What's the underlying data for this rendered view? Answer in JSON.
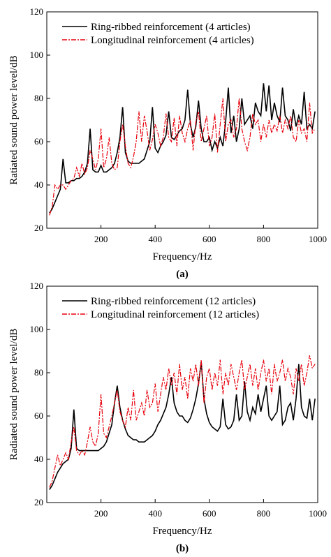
{
  "chart_data": [
    {
      "type": "line",
      "caption": "(a)",
      "x_label": "Frequency/Hz",
      "y_label": "Ratiated sound power level/dB",
      "xlim": [
        0,
        1000
      ],
      "ylim": [
        20,
        120
      ],
      "xticks": [
        200,
        400,
        600,
        800,
        1000
      ],
      "yticks": [
        20,
        40,
        60,
        80,
        100,
        120
      ],
      "x": [
        10,
        20,
        30,
        40,
        50,
        60,
        70,
        80,
        90,
        100,
        110,
        120,
        130,
        140,
        150,
        160,
        170,
        180,
        190,
        200,
        210,
        220,
        230,
        240,
        250,
        260,
        270,
        280,
        290,
        300,
        310,
        320,
        330,
        340,
        350,
        360,
        370,
        380,
        390,
        400,
        410,
        420,
        430,
        440,
        450,
        460,
        470,
        480,
        490,
        500,
        510,
        520,
        530,
        540,
        550,
        560,
        570,
        580,
        590,
        600,
        610,
        620,
        630,
        640,
        650,
        660,
        670,
        680,
        690,
        700,
        710,
        720,
        730,
        740,
        750,
        760,
        770,
        780,
        790,
        800,
        810,
        820,
        830,
        840,
        850,
        860,
        870,
        880,
        890,
        900,
        910,
        920,
        930,
        940,
        950,
        960,
        970,
        980,
        990
      ],
      "series": [
        {
          "name": "Ring-ribbed reinforcement (4 articles)",
          "color": "#000000",
          "style": "solid",
          "values": [
            27,
            29,
            32,
            35,
            38,
            52,
            41,
            41,
            42,
            42,
            43,
            43,
            44,
            46,
            50,
            66,
            47,
            46,
            46,
            49,
            46,
            46,
            47,
            48,
            50,
            55,
            62,
            76,
            55,
            51,
            50,
            50,
            50,
            50,
            51,
            52,
            56,
            60,
            76,
            57,
            55,
            58,
            60,
            63,
            74,
            62,
            61,
            63,
            65,
            66,
            70,
            84,
            68,
            62,
            67,
            79,
            66,
            60,
            60,
            62,
            56,
            60,
            57,
            62,
            58,
            69,
            85,
            64,
            72,
            60,
            66,
            80,
            68,
            70,
            72,
            66,
            78,
            74,
            72,
            87,
            74,
            86,
            70,
            78,
            72,
            69,
            85,
            72,
            70,
            65,
            75,
            67,
            72,
            68,
            83,
            66,
            68,
            66,
            74
          ]
        },
        {
          "name": "Longitudinal reinforcement (4 articles)",
          "color": "#e8000b",
          "style": "dashdot",
          "values": [
            26,
            30,
            40,
            38,
            40,
            40,
            38,
            40,
            42,
            43,
            48,
            44,
            50,
            45,
            48,
            56,
            52,
            47,
            52,
            66,
            48,
            52,
            62,
            50,
            47,
            48,
            60,
            68,
            58,
            50,
            48,
            53,
            60,
            74,
            60,
            72,
            65,
            56,
            61,
            68,
            64,
            58,
            62,
            73,
            62,
            60,
            71,
            58,
            72,
            64,
            60,
            66,
            70,
            56,
            69,
            74,
            60,
            66,
            72,
            58,
            62,
            73,
            55,
            68,
            80,
            60,
            68,
            70,
            62,
            66,
            80,
            66,
            60,
            56,
            62,
            73,
            68,
            70,
            60,
            68,
            62,
            70,
            64,
            68,
            65,
            72,
            64,
            70,
            66,
            72,
            62,
            60,
            70,
            64,
            66,
            60,
            78,
            64,
            66
          ]
        }
      ]
    },
    {
      "type": "line",
      "caption": "(b)",
      "x_label": "Frequency/Hz",
      "y_label": "Radiated sound power level/dB",
      "xlim": [
        0,
        1000
      ],
      "ylim": [
        20,
        120
      ],
      "xticks": [
        200,
        400,
        600,
        800,
        1000
      ],
      "yticks": [
        20,
        40,
        60,
        80,
        100,
        120
      ],
      "x": [
        10,
        20,
        30,
        40,
        50,
        60,
        70,
        80,
        90,
        100,
        110,
        120,
        130,
        140,
        150,
        160,
        170,
        180,
        190,
        200,
        210,
        220,
        230,
        240,
        250,
        260,
        270,
        280,
        290,
        300,
        310,
        320,
        330,
        340,
        350,
        360,
        370,
        380,
        390,
        400,
        410,
        420,
        430,
        440,
        450,
        460,
        470,
        480,
        490,
        500,
        510,
        520,
        530,
        540,
        550,
        560,
        570,
        580,
        590,
        600,
        610,
        620,
        630,
        640,
        650,
        660,
        670,
        680,
        690,
        700,
        710,
        720,
        730,
        740,
        750,
        760,
        770,
        780,
        790,
        800,
        810,
        820,
        830,
        840,
        850,
        860,
        870,
        880,
        890,
        900,
        910,
        920,
        930,
        940,
        950,
        960,
        970,
        980,
        990
      ],
      "series": [
        {
          "name": "Ring-ribbed reinforcement (12 articles)",
          "color": "#000000",
          "style": "solid",
          "values": [
            26,
            28,
            31,
            34,
            36,
            38,
            39,
            40,
            45,
            63,
            45,
            44,
            44,
            44,
            44,
            44,
            44,
            44,
            44,
            45,
            46,
            48,
            52,
            56,
            66,
            74,
            64,
            58,
            54,
            51,
            50,
            49,
            49,
            48,
            48,
            48,
            49,
            50,
            51,
            53,
            56,
            58,
            61,
            64,
            70,
            78,
            66,
            62,
            60,
            60,
            58,
            57,
            59,
            63,
            68,
            75,
            85,
            68,
            61,
            57,
            55,
            54,
            53,
            55,
            68,
            56,
            54,
            55,
            58,
            70,
            58,
            60,
            76,
            62,
            58,
            64,
            61,
            70,
            62,
            68,
            74,
            60,
            58,
            60,
            62,
            74,
            56,
            58,
            64,
            66,
            58,
            68,
            84,
            64,
            60,
            59,
            68,
            58,
            68
          ]
        },
        {
          "name": "Longitudinal reinforcement (12 articles)",
          "color": "#e8000b",
          "style": "dashdot",
          "values": [
            27,
            30,
            36,
            42,
            37,
            40,
            43,
            40,
            48,
            55,
            44,
            42,
            44,
            42,
            48,
            55,
            48,
            46,
            52,
            70,
            52,
            50,
            55,
            60,
            66,
            72,
            62,
            58,
            55,
            64,
            58,
            72,
            58,
            62,
            66,
            60,
            72,
            64,
            66,
            75,
            62,
            70,
            78,
            72,
            82,
            74,
            80,
            70,
            84,
            72,
            78,
            68,
            82,
            76,
            84,
            74,
            86,
            66,
            78,
            82,
            72,
            80,
            74,
            86,
            70,
            80,
            74,
            84,
            78,
            72,
            80,
            86,
            72,
            78,
            84,
            74,
            82,
            72,
            80,
            86,
            76,
            82,
            70,
            84,
            76,
            80,
            86,
            76,
            82,
            78,
            70,
            82,
            76,
            84,
            74,
            80,
            88,
            82,
            84
          ]
        }
      ]
    }
  ]
}
